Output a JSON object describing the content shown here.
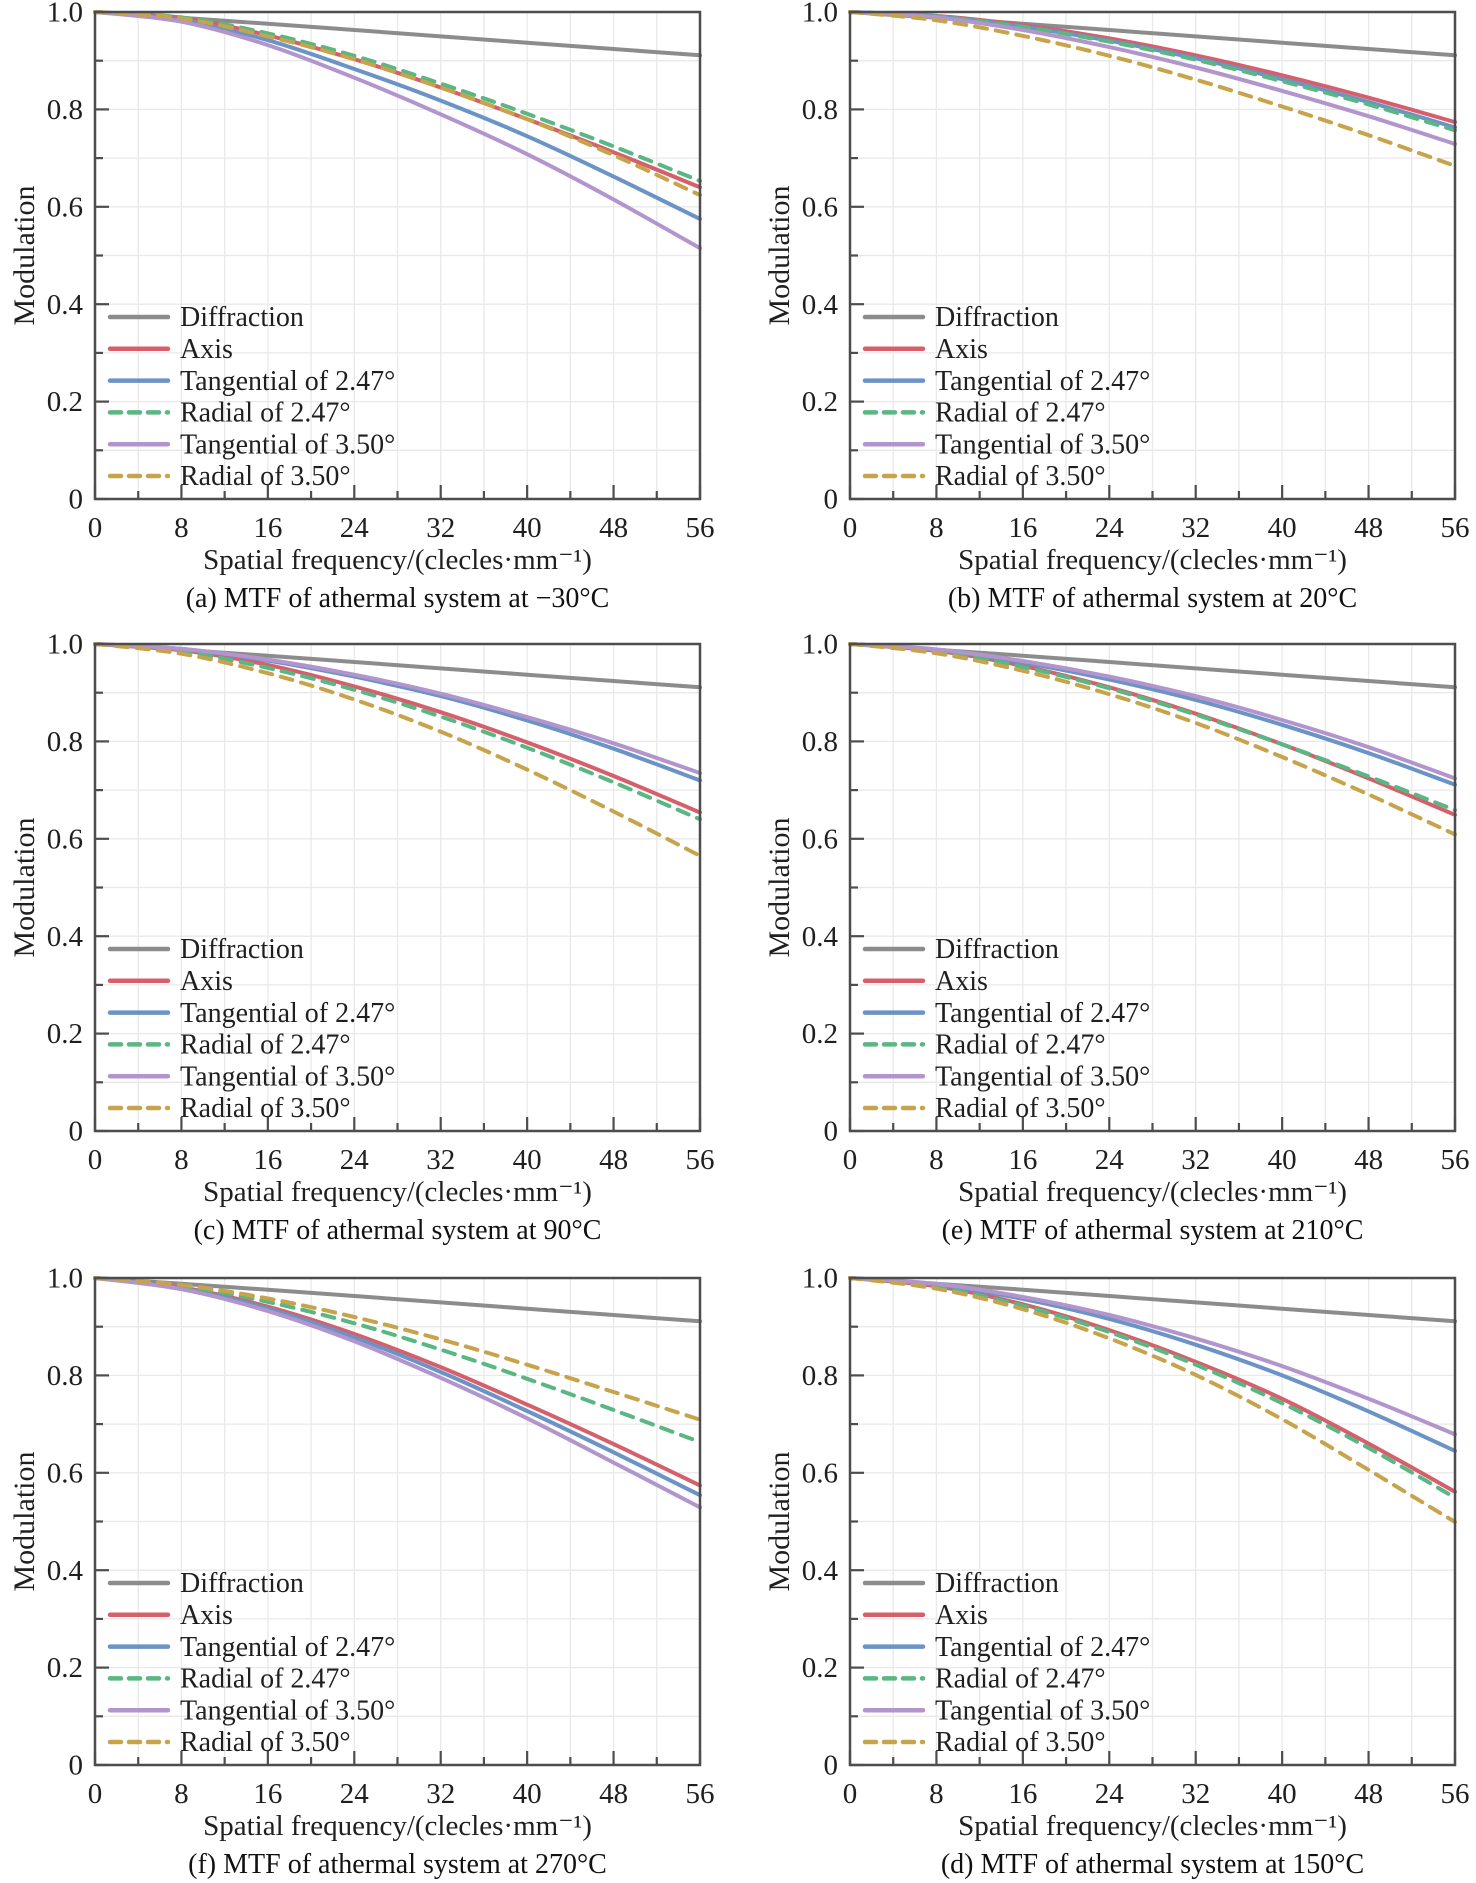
{
  "figure": {
    "xlabel": "Spatial frequency/(clecles·mm⁻¹)",
    "ylabel": "Modulation",
    "xlim": [
      0,
      56
    ],
    "ylim": [
      0,
      1.0
    ],
    "x_ticks": [
      0,
      8,
      16,
      24,
      32,
      40,
      48,
      56
    ],
    "x_minor_ticks": [
      4,
      12,
      20,
      28,
      36,
      44,
      52
    ],
    "y_ticks": [
      "0",
      "0.2",
      "0.4",
      "0.6",
      "0.8",
      "1.0"
    ],
    "y_tick_values": [
      0,
      0.2,
      0.4,
      0.6,
      0.8,
      1.0
    ],
    "y_minor_ticks": [
      0.1,
      0.3,
      0.5,
      0.7,
      0.9
    ],
    "grid": true,
    "grid_color": "#e9e9e9",
    "axis_color": "#4d4d4d",
    "text_color": "#1f1f1f",
    "legend_position": "lower-left",
    "series_styles": [
      {
        "label": "Diffraction",
        "color": "#8c8c8c",
        "dash": "solid"
      },
      {
        "label": "Axis",
        "color": "#d5606b",
        "dash": "solid"
      },
      {
        "label": "Tangential of 2.47°",
        "color": "#6b93c5",
        "dash": "solid"
      },
      {
        "label": "Radial of 2.47°",
        "color": "#5ab783",
        "dash": "dashed"
      },
      {
        "label": "Tangential of 3.50°",
        "color": "#b295cd",
        "dash": "solid"
      },
      {
        "label": "Radial of 3.50°",
        "color": "#c7a44c",
        "dash": "dashed"
      }
    ]
  },
  "chart_data": [
    {
      "type": "line",
      "caption": "(a) MTF of athermal system at −30°C",
      "temperature": "−30°C",
      "xlabel": "Spatial frequency/(clecles·mm⁻¹)",
      "ylabel": "Modulation",
      "x": [
        0,
        8,
        16,
        24,
        32,
        40,
        48,
        56
      ],
      "series": [
        {
          "name": "Diffraction",
          "values": [
            1.0,
            0.988,
            0.976,
            0.963,
            0.95,
            0.937,
            0.924,
            0.911
          ]
        },
        {
          "name": "Axis",
          "values": [
            1.0,
            0.988,
            0.952,
            0.903,
            0.845,
            0.78,
            0.712,
            0.64
          ]
        },
        {
          "name": "Tangential of 2.47°",
          "values": [
            1.0,
            0.984,
            0.942,
            0.883,
            0.818,
            0.745,
            0.662,
            0.575
          ]
        },
        {
          "name": "Radial of 2.47°",
          "values": [
            1.0,
            0.989,
            0.956,
            0.91,
            0.853,
            0.791,
            0.724,
            0.653
          ]
        },
        {
          "name": "Tangential of 3.50°",
          "values": [
            1.0,
            0.98,
            0.932,
            0.865,
            0.79,
            0.708,
            0.615,
            0.515
          ]
        },
        {
          "name": "Radial of 3.50°",
          "values": [
            1.0,
            0.987,
            0.95,
            0.903,
            0.845,
            0.78,
            0.706,
            0.624
          ]
        }
      ]
    },
    {
      "type": "line",
      "caption": "(b) MTF of athermal system at 20°C",
      "temperature": "20°C",
      "xlabel": "Spatial frequency/(clecles·mm⁻¹)",
      "ylabel": "Modulation",
      "x": [
        0,
        8,
        16,
        24,
        32,
        40,
        48,
        56
      ],
      "series": [
        {
          "name": "Diffraction",
          "values": [
            1.0,
            0.988,
            0.976,
            0.963,
            0.95,
            0.937,
            0.924,
            0.911
          ]
        },
        {
          "name": "Axis",
          "values": [
            1.0,
            0.992,
            0.973,
            0.946,
            0.911,
            0.87,
            0.824,
            0.774
          ]
        },
        {
          "name": "Tangential of 2.47°",
          "values": [
            1.0,
            0.991,
            0.97,
            0.941,
            0.905,
            0.862,
            0.815,
            0.763
          ]
        },
        {
          "name": "Radial of 2.47°",
          "values": [
            1.0,
            0.991,
            0.969,
            0.939,
            0.902,
            0.858,
            0.81,
            0.757
          ]
        },
        {
          "name": "Tangential of 3.50°",
          "values": [
            1.0,
            0.989,
            0.963,
            0.928,
            0.886,
            0.838,
            0.786,
            0.729
          ]
        },
        {
          "name": "Radial of 3.50°",
          "values": [
            1.0,
            0.983,
            0.951,
            0.91,
            0.861,
            0.806,
            0.747,
            0.684
          ]
        }
      ]
    },
    {
      "type": "line",
      "caption": "(c) MTF of athermal system at 90°C",
      "temperature": "90°C",
      "xlabel": "Spatial frequency/(clecles·mm⁻¹)",
      "ylabel": "Modulation",
      "x": [
        0,
        8,
        16,
        24,
        32,
        40,
        48,
        56
      ],
      "series": [
        {
          "name": "Diffraction",
          "values": [
            1.0,
            0.988,
            0.976,
            0.963,
            0.95,
            0.937,
            0.924,
            0.911
          ]
        },
        {
          "name": "Axis",
          "values": [
            1.0,
            0.987,
            0.957,
            0.913,
            0.86,
            0.798,
            0.729,
            0.654
          ]
        },
        {
          "name": "Tangential of 2.47°",
          "values": [
            1.0,
            0.99,
            0.966,
            0.933,
            0.893,
            0.843,
            0.785,
            0.72
          ]
        },
        {
          "name": "Radial of 2.47°",
          "values": [
            1.0,
            0.985,
            0.951,
            0.906,
            0.851,
            0.787,
            0.716,
            0.64
          ]
        },
        {
          "name": "Tangential of 3.50°",
          "values": [
            1.0,
            0.99,
            0.968,
            0.937,
            0.898,
            0.85,
            0.796,
            0.735
          ]
        },
        {
          "name": "Radial of 3.50°",
          "values": [
            1.0,
            0.98,
            0.94,
            0.886,
            0.82,
            0.742,
            0.656,
            0.565
          ]
        }
      ]
    },
    {
      "type": "line",
      "caption": "(e) MTF of athermal system at 210°C",
      "temperature": "210°C",
      "xlabel": "Spatial frequency/(clecles·mm⁻¹)",
      "ylabel": "Modulation",
      "x": [
        0,
        8,
        16,
        24,
        32,
        40,
        48,
        56
      ],
      "series": [
        {
          "name": "Diffraction",
          "values": [
            1.0,
            0.988,
            0.976,
            0.963,
            0.95,
            0.937,
            0.924,
            0.911
          ]
        },
        {
          "name": "Axis",
          "values": [
            1.0,
            0.986,
            0.955,
            0.911,
            0.857,
            0.794,
            0.724,
            0.649
          ]
        },
        {
          "name": "Tangential of 2.47°",
          "values": [
            1.0,
            0.988,
            0.962,
            0.927,
            0.885,
            0.834,
            0.776,
            0.711
          ]
        },
        {
          "name": "Radial of 2.47°",
          "values": [
            1.0,
            0.985,
            0.953,
            0.909,
            0.855,
            0.794,
            0.728,
            0.659
          ]
        },
        {
          "name": "Tangential of 3.50°",
          "values": [
            1.0,
            0.989,
            0.965,
            0.933,
            0.893,
            0.844,
            0.788,
            0.724
          ]
        },
        {
          "name": "Radial of 3.50°",
          "values": [
            1.0,
            0.981,
            0.945,
            0.897,
            0.838,
            0.768,
            0.691,
            0.609
          ]
        }
      ]
    },
    {
      "type": "line",
      "caption": "(f) MTF of athermal system at 270°C",
      "temperature": "270°C",
      "xlabel": "Spatial frequency/(clecles·mm⁻¹)",
      "ylabel": "Modulation",
      "x": [
        0,
        8,
        16,
        24,
        32,
        40,
        48,
        56
      ],
      "series": [
        {
          "name": "Diffraction",
          "values": [
            1.0,
            0.988,
            0.976,
            0.963,
            0.95,
            0.937,
            0.924,
            0.911
          ]
        },
        {
          "name": "Axis",
          "values": [
            1.0,
            0.981,
            0.941,
            0.885,
            0.817,
            0.74,
            0.659,
            0.574
          ]
        },
        {
          "name": "Tangential of 2.47°",
          "values": [
            1.0,
            0.979,
            0.937,
            0.878,
            0.807,
            0.727,
            0.642,
            0.554
          ]
        },
        {
          "name": "Radial of 2.47°",
          "values": [
            1.0,
            0.984,
            0.951,
            0.907,
            0.853,
            0.793,
            0.729,
            0.663
          ]
        },
        {
          "name": "Tangential of 3.50°",
          "values": [
            1.0,
            0.977,
            0.932,
            0.87,
            0.795,
            0.712,
            0.621,
            0.529
          ]
        },
        {
          "name": "Radial of 3.50°",
          "values": [
            1.0,
            0.986,
            0.958,
            0.92,
            0.874,
            0.822,
            0.766,
            0.709
          ]
        }
      ]
    },
    {
      "type": "line",
      "caption": "(d) MTF of athermal system at 150°C",
      "temperature": "150°C",
      "xlabel": "Spatial frequency/(clecles·mm⁻¹)",
      "ylabel": "Modulation",
      "x": [
        0,
        8,
        16,
        24,
        32,
        40,
        48,
        56
      ],
      "series": [
        {
          "name": "Diffraction",
          "values": [
            1.0,
            0.988,
            0.976,
            0.963,
            0.95,
            0.937,
            0.924,
            0.911
          ]
        },
        {
          "name": "Axis",
          "values": [
            1.0,
            0.983,
            0.946,
            0.893,
            0.828,
            0.752,
            0.66,
            0.561
          ]
        },
        {
          "name": "Tangential of 2.47°",
          "values": [
            1.0,
            0.986,
            0.957,
            0.916,
            0.863,
            0.8,
            0.726,
            0.645
          ]
        },
        {
          "name": "Radial of 2.47°",
          "values": [
            1.0,
            0.981,
            0.943,
            0.889,
            0.822,
            0.743,
            0.651,
            0.549
          ]
        },
        {
          "name": "Tangential of 3.50°",
          "values": [
            1.0,
            0.988,
            0.961,
            0.924,
            0.876,
            0.819,
            0.752,
            0.679
          ]
        },
        {
          "name": "Radial of 3.50°",
          "values": [
            1.0,
            0.978,
            0.936,
            0.876,
            0.801,
            0.71,
            0.606,
            0.499
          ]
        }
      ]
    }
  ]
}
